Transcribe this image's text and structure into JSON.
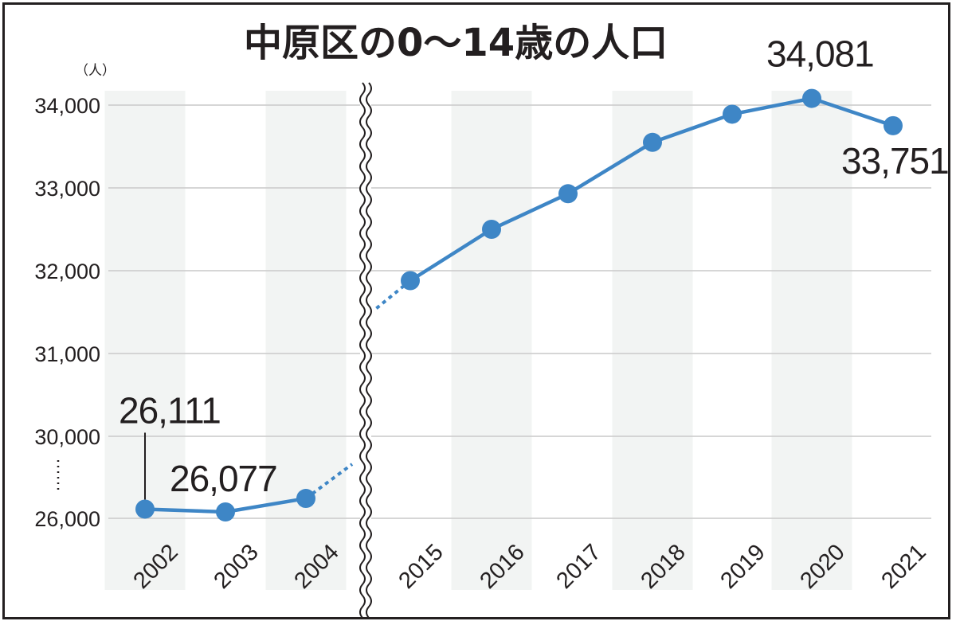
{
  "chart_data": {
    "type": "line",
    "title": "中原区の0〜14歳の人口",
    "unit_label": "（人）",
    "x": [
      "2002",
      "2003",
      "2004",
      "2015",
      "2016",
      "2017",
      "2018",
      "2019",
      "2020",
      "2021"
    ],
    "values": [
      26111,
      26077,
      26240,
      31880,
      32500,
      32930,
      33550,
      33890,
      34081,
      33751
    ],
    "y_ticks": [
      "34,000",
      "33,000",
      "32,000",
      "31,000",
      "30,000",
      "26,000"
    ],
    "y_tick_values": [
      34000,
      33000,
      32000,
      31000,
      30000,
      26000
    ],
    "axis_break": {
      "y": "between 26,000 and 30,000",
      "x": "between 2004 and 2015"
    },
    "data_labels": [
      {
        "x": "2002",
        "text": "26,111"
      },
      {
        "x": "2003",
        "text": "26,077"
      },
      {
        "x": "2020",
        "text": "34,081"
      },
      {
        "x": "2021",
        "text": "33,751"
      }
    ],
    "grid": true,
    "legend": "none"
  },
  "colors": {
    "line": "#3e86c6",
    "grid": "#c9c9c9",
    "band": "#f2f4f3",
    "text": "#231f20"
  }
}
